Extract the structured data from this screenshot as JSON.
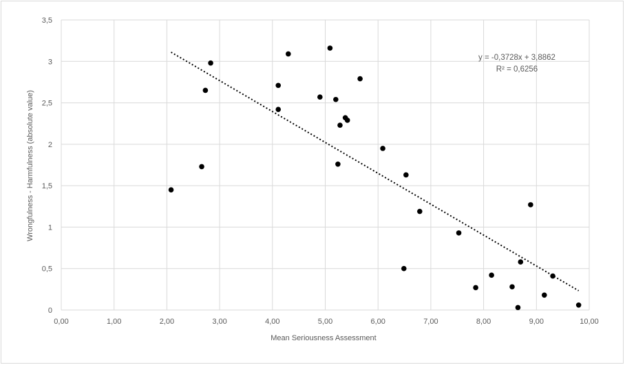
{
  "chart_data": {
    "type": "scatter",
    "title": "",
    "xlabel": "Mean Seriousness Assessment",
    "ylabel": "Wrongfulness - Harmfulness (absolute value)",
    "xlim": [
      0,
      10
    ],
    "ylim": [
      0,
      3.5
    ],
    "x_ticks": [
      0,
      1,
      2,
      3,
      4,
      5,
      6,
      7,
      8,
      9,
      10
    ],
    "y_ticks": [
      0,
      0.5,
      1,
      1.5,
      2,
      2.5,
      3,
      3.5
    ],
    "x_tick_labels": [
      "0,00",
      "1,00",
      "2,00",
      "3,00",
      "4,00",
      "5,00",
      "6,00",
      "7,00",
      "8,00",
      "9,00",
      "10,00"
    ],
    "y_tick_labels": [
      "0",
      "0,5",
      "1",
      "1,5",
      "2",
      "2,5",
      "3",
      "3,5"
    ],
    "grid": true,
    "point_color": "#000000",
    "gridline_color": "#d9d9d9",
    "series": [
      {
        "points": [
          {
            "x": 2.08,
            "y": 1.45
          },
          {
            "x": 2.66,
            "y": 1.73
          },
          {
            "x": 2.73,
            "y": 2.65
          },
          {
            "x": 2.83,
            "y": 2.98
          },
          {
            "x": 4.11,
            "y": 2.71
          },
          {
            "x": 4.11,
            "y": 2.42
          },
          {
            "x": 4.3,
            "y": 3.09
          },
          {
            "x": 4.9,
            "y": 2.57
          },
          {
            "x": 5.09,
            "y": 3.16
          },
          {
            "x": 5.2,
            "y": 2.54
          },
          {
            "x": 5.24,
            "y": 1.76
          },
          {
            "x": 5.28,
            "y": 2.23
          },
          {
            "x": 5.38,
            "y": 2.32
          },
          {
            "x": 5.42,
            "y": 2.29
          },
          {
            "x": 5.66,
            "y": 2.79
          },
          {
            "x": 6.09,
            "y": 1.95
          },
          {
            "x": 6.49,
            "y": 0.5
          },
          {
            "x": 6.53,
            "y": 1.63
          },
          {
            "x": 6.79,
            "y": 1.19
          },
          {
            "x": 7.53,
            "y": 0.93
          },
          {
            "x": 7.85,
            "y": 0.27
          },
          {
            "x": 8.15,
            "y": 0.42
          },
          {
            "x": 8.54,
            "y": 0.28
          },
          {
            "x": 8.65,
            "y": 0.03
          },
          {
            "x": 8.7,
            "y": 0.58
          },
          {
            "x": 8.89,
            "y": 1.27
          },
          {
            "x": 9.15,
            "y": 0.18
          },
          {
            "x": 9.31,
            "y": 0.41
          },
          {
            "x": 9.8,
            "y": 0.06
          }
        ]
      }
    ],
    "trendline": {
      "type": "linear",
      "slope": -0.3728,
      "intercept": 3.8862,
      "x_start": 2.08,
      "x_end": 9.8,
      "equation_label": "y = -0,3728x + 3,8862",
      "r_squared_label": "R² = 0,6256"
    }
  }
}
